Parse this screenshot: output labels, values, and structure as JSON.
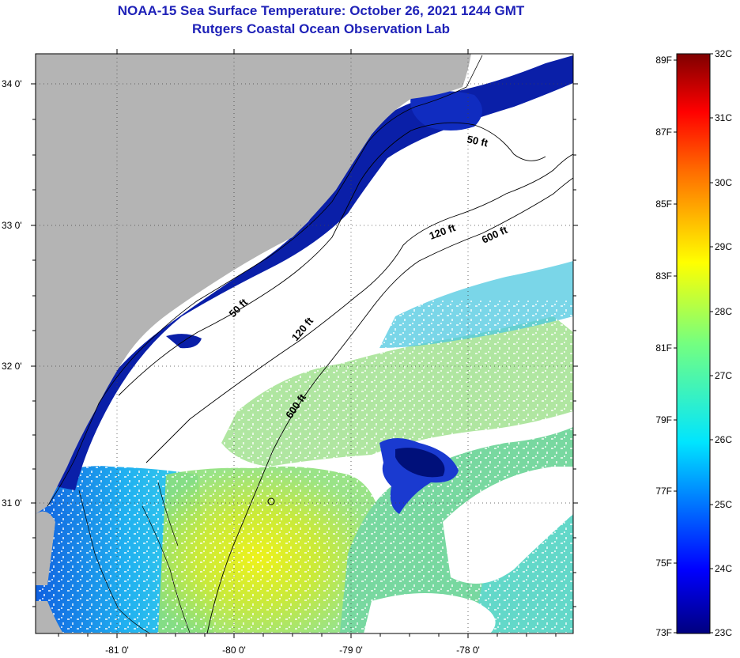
{
  "title": {
    "line1": "NOAA-15 Sea Surface Temperature:  October 26, 2021 1244 GMT",
    "line2": "Rutgers Coastal Ocean Observation Lab"
  },
  "map": {
    "lon_labels": [
      "-81 0'",
      "-80 0'",
      "-79 0'",
      "-78 0'"
    ],
    "lat_labels": [
      "34 0'",
      "33 0'",
      "32 0'",
      "31 0'"
    ],
    "contour_labels": [
      "50 ft",
      "120 ft",
      "600 ft",
      "50 ft",
      "120 ft",
      "600 ft"
    ]
  },
  "colorbar": {
    "fahrenheit_labels": [
      "89F",
      "87F",
      "85F",
      "83F",
      "81F",
      "79F",
      "77F",
      "75F",
      "73F"
    ],
    "celsius_labels": [
      "32C",
      "31C",
      "30C",
      "29C",
      "28C",
      "27C",
      "26C",
      "25C",
      "24C",
      "23C"
    ]
  },
  "colors": {
    "title": "#1f22b8",
    "land": "#b4b4b4",
    "cloud": "#ffffff",
    "cold": "#00109a",
    "warm": "#e6f020"
  }
}
